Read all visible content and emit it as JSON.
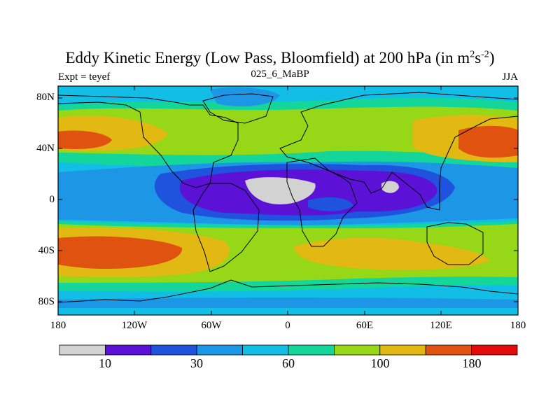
{
  "title_main": "Eddy Kinetic Energy (Low Pass, Bloomfield) at 200 hPa (in m",
  "title_sup1": "2",
  "title_mid": "s",
  "title_sup2": "-2",
  "title_end": ")",
  "subtitle": "025_6_MaBP",
  "expt_label": "Expt = teyef",
  "season": "JJA",
  "y_labels": [
    "80N",
    "40N",
    "0",
    "40S",
    "80S"
  ],
  "x_labels": [
    "180",
    "120W",
    "60W",
    "0",
    "60E",
    "120E",
    "180"
  ],
  "colorbar": {
    "colors": [
      "#d2d2d2",
      "#5b12d6",
      "#1f52dd",
      "#1e96e6",
      "#12bee6",
      "#14d69a",
      "#96d818",
      "#e2b812",
      "#e05210",
      "#e20a0a"
    ],
    "labels": [
      "10",
      "30",
      "60",
      "100",
      "180"
    ]
  }
}
